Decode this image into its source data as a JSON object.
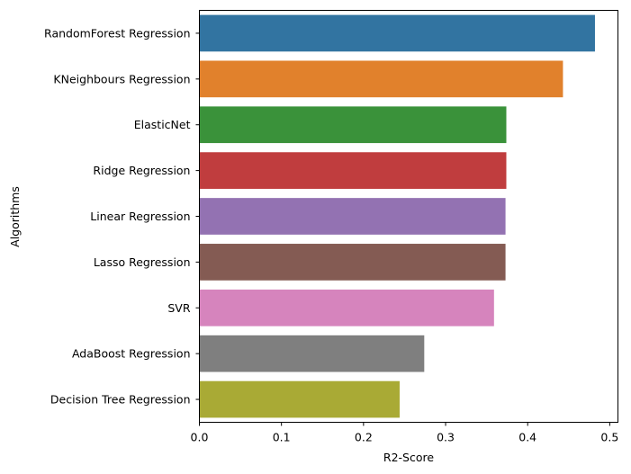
{
  "chart_data": {
    "type": "bar",
    "orientation": "horizontal",
    "title": "",
    "xlabel": "R2-Score",
    "ylabel": "Algorithms",
    "xlim": [
      0,
      0.51
    ],
    "xticks": [
      0.0,
      0.1,
      0.2,
      0.3,
      0.4,
      0.5
    ],
    "xtick_labels": [
      "0.0",
      "0.1",
      "0.2",
      "0.3",
      "0.4",
      "0.5"
    ],
    "grid": false,
    "categories": [
      "RandomForest Regression",
      "KNeighbours Regression",
      "ElasticNet",
      "Ridge Regression",
      "Linear Regression",
      "Lasso Regression",
      "SVR",
      "AdaBoost Regression",
      "Decision Tree Regression"
    ],
    "values": [
      0.482,
      0.443,
      0.374,
      0.374,
      0.373,
      0.373,
      0.359,
      0.274,
      0.244
    ],
    "colors": [
      "#3274a1",
      "#e1812c",
      "#3a923a",
      "#c03d3e",
      "#9372b2",
      "#845b53",
      "#d684bd",
      "#7f7f7f",
      "#a9aa35"
    ]
  }
}
